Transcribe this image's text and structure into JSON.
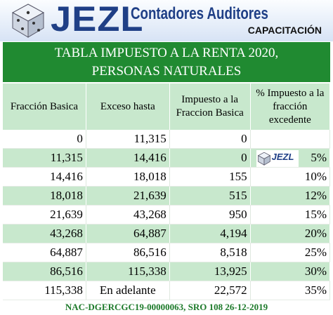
{
  "header": {
    "brand": "JEZL",
    "firm_name": "Contadores Auditores",
    "course_label": "CAPACITACIÓN",
    "logo_icon": "dice-logo-icon",
    "colors": {
      "brand": "#1f3f86",
      "title_bar": "#208a31",
      "row_shade": "#c8e8cd",
      "footer": "#1d7a2a"
    }
  },
  "title": {
    "line1": "TABLA IMPUESTO A LA RENTA 2020,",
    "line2": "PERSONAS NATURALES"
  },
  "table": {
    "headers": [
      "Fracción Basica",
      "Exceso hasta",
      "Impuesto a la Fraccion Basica",
      "% Impuesto a la fracción excedente"
    ],
    "rows": [
      [
        "0",
        "11,315",
        "0",
        ""
      ],
      [
        "11,315",
        "14,416",
        "0",
        "5%"
      ],
      [
        "14,416",
        "18,018",
        "155",
        "10%"
      ],
      [
        "18,018",
        "21,639",
        "515",
        "12%"
      ],
      [
        "21,639",
        "43,268",
        "950",
        "15%"
      ],
      [
        "43,268",
        "64,887",
        "4,194",
        "20%"
      ],
      [
        "64,887",
        "86,516",
        "8,518",
        "25%"
      ],
      [
        "86,516",
        "115,338",
        "13,925",
        "30%"
      ],
      [
        "115,338",
        "En adelante",
        "22,572",
        "35%"
      ]
    ]
  },
  "watermark": {
    "text": "JEZL",
    "icon": "dice-logo-icon"
  },
  "footer": {
    "note": "NAC-DGERCGC19-00000063, SRO 108 26-12-2019"
  }
}
